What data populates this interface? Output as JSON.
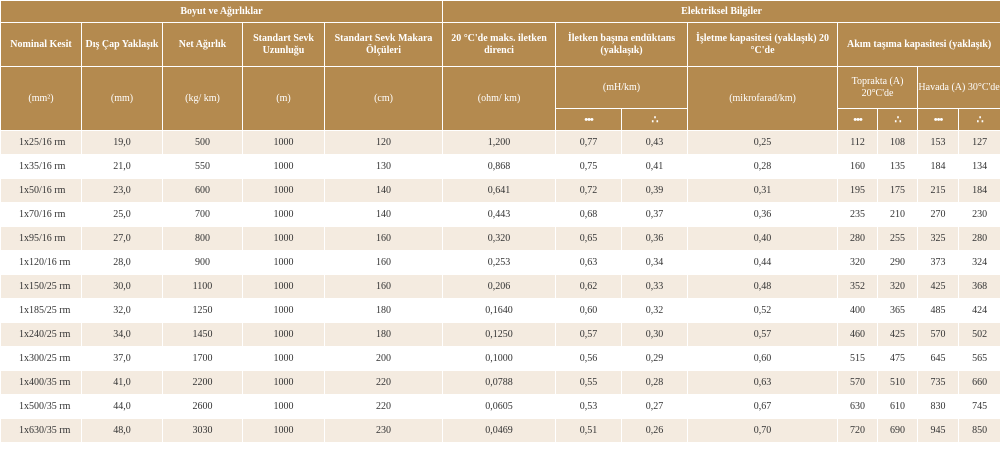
{
  "header": {
    "group_dimensions": "Boyut ve Ağırlıklar",
    "group_electrical": "Elektriksel Bilgiler",
    "columns": {
      "nominal": "Nominal Kesit",
      "diameter": "Dış Çap Yaklaşık",
      "weight": "Net Ağırlık",
      "length": "Standart Sevk Uzunluğu",
      "reel": "Standart Sevk Makara Ölçüleri",
      "resistance": "20 °C'de maks. iletken direnci",
      "inductance": "İletken başına endüktans (yaklaşık)",
      "capacitance": "İşletme kapasitesi (yaklaşık) 20 °C'de",
      "current": "Akım taşıma kapasitesi (yaklaşık)",
      "soil": "Toprakta (A) 20°C'de",
      "air": "Havada (A) 30°C'de"
    },
    "units": {
      "nominal": "(mm²)",
      "diameter": "(mm)",
      "weight": "(kg/ km)",
      "length": "(m)",
      "reel": "(cm)",
      "resistance": "(ohm/ km)",
      "inductance": "(mH/km)",
      "capacitance": "(mikrofarad/km)"
    },
    "symbols": {
      "flat": "•••",
      "trefoil": "∴"
    }
  },
  "rows": [
    [
      "1x25/16 rm",
      "19,0",
      "500",
      "1000",
      "120",
      "1,200",
      "0,77",
      "0,43",
      "0,25",
      "112",
      "108",
      "153",
      "127"
    ],
    [
      "1x35/16 rm",
      "21,0",
      "550",
      "1000",
      "130",
      "0,868",
      "0,75",
      "0,41",
      "0,28",
      "160",
      "135",
      "184",
      "134"
    ],
    [
      "1x50/16 rm",
      "23,0",
      "600",
      "1000",
      "140",
      "0,641",
      "0,72",
      "0,39",
      "0,31",
      "195",
      "175",
      "215",
      "184"
    ],
    [
      "1x70/16 rm",
      "25,0",
      "700",
      "1000",
      "140",
      "0,443",
      "0,68",
      "0,37",
      "0,36",
      "235",
      "210",
      "270",
      "230"
    ],
    [
      "1x95/16 rm",
      "27,0",
      "800",
      "1000",
      "160",
      "0,320",
      "0,65",
      "0,36",
      "0,40",
      "280",
      "255",
      "325",
      "280"
    ],
    [
      "1x120/16 rm",
      "28,0",
      "900",
      "1000",
      "160",
      "0,253",
      "0,63",
      "0,34",
      "0,44",
      "320",
      "290",
      "373",
      "324"
    ],
    [
      "1x150/25 rm",
      "30,0",
      "1100",
      "1000",
      "160",
      "0,206",
      "0,62",
      "0,33",
      "0,48",
      "352",
      "320",
      "425",
      "368"
    ],
    [
      "1x185/25 rm",
      "32,0",
      "1250",
      "1000",
      "180",
      "0,1640",
      "0,60",
      "0,32",
      "0,52",
      "400",
      "365",
      "485",
      "424"
    ],
    [
      "1x240/25 rm",
      "34,0",
      "1450",
      "1000",
      "180",
      "0,1250",
      "0,57",
      "0,30",
      "0,57",
      "460",
      "425",
      "570",
      "502"
    ],
    [
      "1x300/25 rm",
      "37,0",
      "1700",
      "1000",
      "200",
      "0,1000",
      "0,56",
      "0,29",
      "0,60",
      "515",
      "475",
      "645",
      "565"
    ],
    [
      "1x400/35 rm",
      "41,0",
      "2200",
      "1000",
      "220",
      "0,0788",
      "0,55",
      "0,28",
      "0,63",
      "570",
      "510",
      "735",
      "660"
    ],
    [
      "1x500/35 rm",
      "44,0",
      "2600",
      "1000",
      "220",
      "0,0605",
      "0,53",
      "0,27",
      "0,67",
      "630",
      "610",
      "830",
      "745"
    ],
    [
      "1x630/35 rm",
      "48,0",
      "3030",
      "1000",
      "230",
      "0,0469",
      "0,51",
      "0,26",
      "0,70",
      "720",
      "690",
      "945",
      "850"
    ]
  ]
}
